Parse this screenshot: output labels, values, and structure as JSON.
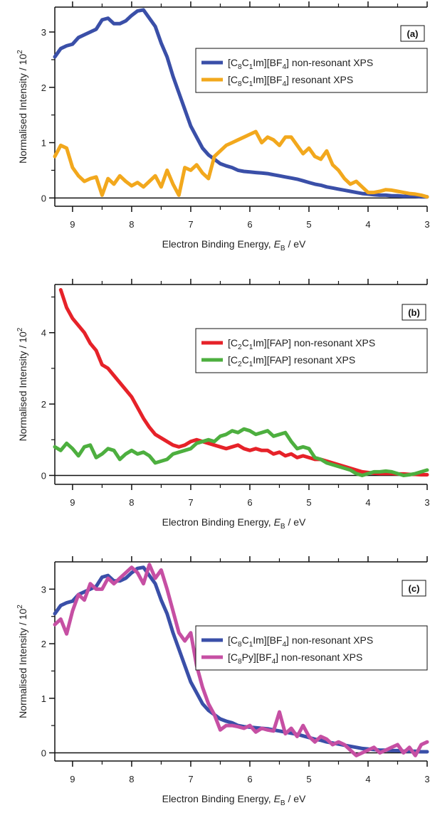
{
  "chart_data": [
    {
      "type": "line",
      "panel_label": "(a)",
      "xlabel": "Electron Binding Energy, E_B / eV",
      "xlabel_parts": {
        "pre": "Electron Binding Energy, ",
        "E": "E",
        "sub": "B",
        "post": " / eV"
      },
      "ylabel": "Normalised Intensity / 10^2",
      "ylabel_parts": {
        "main": "Normalised Intensity / 10",
        "sup": "2"
      },
      "xlim": [
        9.3,
        3.0
      ],
      "ylim": [
        -0.15,
        3.45
      ],
      "xticks": [
        "9",
        "8",
        "7",
        "6",
        "5",
        "4",
        "3"
      ],
      "yticks": [
        "0",
        "1",
        "2",
        "3"
      ],
      "legend_position": "top-right",
      "series": [
        {
          "name": "[C8C1Im][BF4] non-resonant XPS",
          "legend_parts": {
            "a": "[C",
            "s1": "8",
            "b": "C",
            "s2": "1",
            "c": "Im][BF",
            "s3": "4",
            "d": "] non-resonant XPS"
          },
          "color": "#3a4fa8",
          "x": [
            9.3,
            9.2,
            9.1,
            9.0,
            8.9,
            8.8,
            8.7,
            8.6,
            8.5,
            8.4,
            8.3,
            8.2,
            8.1,
            8.0,
            7.9,
            7.8,
            7.7,
            7.6,
            7.5,
            7.4,
            7.3,
            7.2,
            7.1,
            7.0,
            6.9,
            6.8,
            6.7,
            6.6,
            6.5,
            6.4,
            6.3,
            6.2,
            6.1,
            6.0,
            5.9,
            5.8,
            5.7,
            5.6,
            5.5,
            5.4,
            5.3,
            5.2,
            5.1,
            5.0,
            4.9,
            4.8,
            4.7,
            4.6,
            4.5,
            4.4,
            4.3,
            4.2,
            4.1,
            4.0,
            3.9,
            3.8,
            3.7,
            3.6,
            3.5,
            3.4,
            3.3,
            3.2,
            3.1,
            3.0
          ],
          "y": [
            2.55,
            2.7,
            2.75,
            2.78,
            2.9,
            2.95,
            3.0,
            3.05,
            3.22,
            3.25,
            3.15,
            3.15,
            3.2,
            3.3,
            3.38,
            3.4,
            3.25,
            3.1,
            2.8,
            2.55,
            2.2,
            1.9,
            1.6,
            1.3,
            1.1,
            0.9,
            0.78,
            0.7,
            0.62,
            0.58,
            0.55,
            0.5,
            0.48,
            0.47,
            0.46,
            0.45,
            0.44,
            0.42,
            0.4,
            0.38,
            0.36,
            0.34,
            0.31,
            0.28,
            0.25,
            0.23,
            0.2,
            0.18,
            0.16,
            0.14,
            0.12,
            0.1,
            0.08,
            0.07,
            0.06,
            0.05,
            0.05,
            0.04,
            0.04,
            0.03,
            0.03,
            0.03,
            0.02,
            0.02
          ]
        },
        {
          "name": "[C8C1Im][BF4] resonant XPS",
          "legend_parts": {
            "a": "[C",
            "s1": "8",
            "b": "C",
            "s2": "1",
            "c": "Im][BF",
            "s3": "4",
            "d": "] resonant XPS"
          },
          "color": "#f2a81d",
          "x": [
            9.3,
            9.2,
            9.1,
            9.0,
            8.9,
            8.8,
            8.7,
            8.6,
            8.5,
            8.4,
            8.3,
            8.2,
            8.1,
            8.0,
            7.9,
            7.8,
            7.7,
            7.6,
            7.5,
            7.4,
            7.3,
            7.2,
            7.1,
            7.0,
            6.9,
            6.8,
            6.7,
            6.6,
            6.5,
            6.4,
            6.3,
            6.2,
            6.1,
            6.0,
            5.9,
            5.8,
            5.7,
            5.6,
            5.5,
            5.4,
            5.3,
            5.2,
            5.1,
            5.0,
            4.9,
            4.8,
            4.7,
            4.6,
            4.5,
            4.4,
            4.3,
            4.2,
            4.1,
            4.0,
            3.9,
            3.8,
            3.7,
            3.6,
            3.5,
            3.4,
            3.3,
            3.2,
            3.1,
            3.0
          ],
          "y": [
            0.75,
            0.95,
            0.9,
            0.55,
            0.4,
            0.3,
            0.35,
            0.38,
            0.05,
            0.35,
            0.25,
            0.4,
            0.3,
            0.22,
            0.28,
            0.2,
            0.3,
            0.4,
            0.2,
            0.5,
            0.25,
            0.05,
            0.55,
            0.5,
            0.6,
            0.45,
            0.35,
            0.75,
            0.85,
            0.95,
            1.0,
            1.05,
            1.1,
            1.15,
            1.2,
            1.0,
            1.1,
            1.05,
            0.95,
            1.1,
            1.1,
            0.95,
            0.8,
            0.9,
            0.75,
            0.7,
            0.85,
            0.6,
            0.5,
            0.35,
            0.25,
            0.3,
            0.2,
            0.1,
            0.1,
            0.12,
            0.15,
            0.14,
            0.12,
            0.1,
            0.08,
            0.07,
            0.05,
            0.02
          ]
        }
      ]
    },
    {
      "type": "line",
      "panel_label": "(b)",
      "xlabel": "Electron Binding Energy, E_B / eV",
      "xlabel_parts": {
        "pre": "Electron Binding Energy, ",
        "E": "E",
        "sub": "B",
        "post": " / eV"
      },
      "ylabel": "Normalised Intensity / 10^2",
      "ylabel_parts": {
        "main": "Normalised Intensity / 10",
        "sup": "2"
      },
      "xlim": [
        9.3,
        3.0
      ],
      "ylim": [
        -0.25,
        5.35
      ],
      "xticks": [
        "9",
        "8",
        "7",
        "6",
        "5",
        "4",
        "3"
      ],
      "yticks": [
        "0",
        "2",
        "4"
      ],
      "legend_position": "top-right",
      "series": [
        {
          "name": "[C2C1Im][FAP] non-resonant XPS",
          "legend_parts": {
            "a": "[C",
            "s1": "2",
            "b": "C",
            "s2": "1",
            "c": "Im][FAP]",
            "s3": "",
            "d": " non-resonant XPS"
          },
          "color": "#e62229",
          "x": [
            9.2,
            9.1,
            9.0,
            8.9,
            8.8,
            8.7,
            8.6,
            8.5,
            8.4,
            8.3,
            8.2,
            8.1,
            8.0,
            7.9,
            7.8,
            7.7,
            7.6,
            7.5,
            7.4,
            7.3,
            7.2,
            7.1,
            7.0,
            6.9,
            6.8,
            6.7,
            6.6,
            6.5,
            6.4,
            6.3,
            6.2,
            6.1,
            6.0,
            5.9,
            5.8,
            5.7,
            5.6,
            5.5,
            5.4,
            5.3,
            5.2,
            5.1,
            5.0,
            4.9,
            4.8,
            4.7,
            4.6,
            4.5,
            4.4,
            4.3,
            4.2,
            4.1,
            4.0,
            3.9,
            3.8,
            3.7,
            3.6,
            3.5,
            3.4,
            3.3,
            3.2,
            3.1,
            3.0
          ],
          "y": [
            5.2,
            4.7,
            4.4,
            4.2,
            4.0,
            3.7,
            3.5,
            3.1,
            3.0,
            2.8,
            2.6,
            2.4,
            2.2,
            1.9,
            1.6,
            1.35,
            1.15,
            1.05,
            0.95,
            0.85,
            0.8,
            0.85,
            0.95,
            1.0,
            0.95,
            0.9,
            0.85,
            0.8,
            0.75,
            0.8,
            0.85,
            0.75,
            0.7,
            0.75,
            0.7,
            0.7,
            0.6,
            0.65,
            0.55,
            0.6,
            0.5,
            0.55,
            0.5,
            0.45,
            0.45,
            0.4,
            0.35,
            0.3,
            0.25,
            0.2,
            0.15,
            0.1,
            0.08,
            0.06,
            0.05,
            0.05,
            0.05,
            0.04,
            0.04,
            0.03,
            0.03,
            0.02,
            0.02
          ]
        },
        {
          "name": "[C2C1Im][FAP] resonant XPS",
          "legend_parts": {
            "a": "[C",
            "s1": "2",
            "b": "C",
            "s2": "1",
            "c": "Im][FAP]",
            "s3": "",
            "d": " resonant XPS"
          },
          "color": "#4daf3f",
          "x": [
            9.3,
            9.2,
            9.1,
            9.0,
            8.9,
            8.8,
            8.7,
            8.6,
            8.5,
            8.4,
            8.3,
            8.2,
            8.1,
            8.0,
            7.9,
            7.8,
            7.7,
            7.6,
            7.5,
            7.4,
            7.3,
            7.2,
            7.1,
            7.0,
            6.9,
            6.8,
            6.7,
            6.6,
            6.5,
            6.4,
            6.3,
            6.2,
            6.1,
            6.0,
            5.9,
            5.8,
            5.7,
            5.6,
            5.5,
            5.4,
            5.3,
            5.2,
            5.1,
            5.0,
            4.9,
            4.8,
            4.7,
            4.6,
            4.5,
            4.4,
            4.3,
            4.2,
            4.1,
            4.0,
            3.9,
            3.8,
            3.7,
            3.6,
            3.5,
            3.4,
            3.3,
            3.2,
            3.1,
            3.0
          ],
          "y": [
            0.8,
            0.7,
            0.9,
            0.75,
            0.55,
            0.8,
            0.85,
            0.5,
            0.6,
            0.75,
            0.7,
            0.45,
            0.6,
            0.7,
            0.6,
            0.65,
            0.55,
            0.35,
            0.4,
            0.45,
            0.6,
            0.65,
            0.7,
            0.75,
            0.9,
            0.95,
            1.0,
            0.95,
            1.1,
            1.15,
            1.25,
            1.2,
            1.3,
            1.25,
            1.15,
            1.2,
            1.25,
            1.1,
            1.15,
            1.2,
            0.95,
            0.75,
            0.8,
            0.75,
            0.5,
            0.45,
            0.35,
            0.3,
            0.25,
            0.2,
            0.15,
            0.05,
            0.0,
            0.05,
            0.1,
            0.1,
            0.12,
            0.1,
            0.05,
            0.0,
            0.02,
            0.05,
            0.1,
            0.15
          ]
        }
      ]
    },
    {
      "type": "line",
      "panel_label": "(c)",
      "xlabel": "Electron Binding Energy, E_B / eV",
      "xlabel_parts": {
        "pre": "Electron Binding Energy, ",
        "E": "E",
        "sub": "B",
        "post": " / eV"
      },
      "ylabel": "Normalised Intensity / 10^2",
      "ylabel_parts": {
        "main": "Normalised Intensity / 10",
        "sup": "2"
      },
      "xlim": [
        9.3,
        3.0
      ],
      "ylim": [
        -0.15,
        3.5
      ],
      "xticks": [
        "9",
        "8",
        "7",
        "6",
        "5",
        "4",
        "3"
      ],
      "yticks": [
        "0",
        "1",
        "2",
        "3"
      ],
      "legend_position": "right",
      "series": [
        {
          "name": "[C8C1Im][BF4] non-resonant XPS",
          "legend_parts": {
            "a": "[C",
            "s1": "8",
            "b": "C",
            "s2": "1",
            "c": "Im][BF",
            "s3": "4",
            "d": "] non-resonant XPS"
          },
          "color": "#3a4fa8",
          "x": [
            9.3,
            9.2,
            9.1,
            9.0,
            8.9,
            8.8,
            8.7,
            8.6,
            8.5,
            8.4,
            8.3,
            8.2,
            8.1,
            8.0,
            7.9,
            7.8,
            7.7,
            7.6,
            7.5,
            7.4,
            7.3,
            7.2,
            7.1,
            7.0,
            6.9,
            6.8,
            6.7,
            6.6,
            6.5,
            6.4,
            6.3,
            6.2,
            6.1,
            6.0,
            5.9,
            5.8,
            5.7,
            5.6,
            5.5,
            5.4,
            5.3,
            5.2,
            5.1,
            5.0,
            4.9,
            4.8,
            4.7,
            4.6,
            4.5,
            4.4,
            4.3,
            4.2,
            4.1,
            4.0,
            3.9,
            3.8,
            3.7,
            3.6,
            3.5,
            3.4,
            3.3,
            3.2,
            3.1,
            3.0
          ],
          "y": [
            2.55,
            2.7,
            2.75,
            2.78,
            2.9,
            2.95,
            3.0,
            3.05,
            3.22,
            3.25,
            3.15,
            3.15,
            3.2,
            3.3,
            3.38,
            3.4,
            3.25,
            3.1,
            2.8,
            2.55,
            2.2,
            1.9,
            1.6,
            1.3,
            1.1,
            0.9,
            0.78,
            0.7,
            0.62,
            0.58,
            0.55,
            0.5,
            0.48,
            0.47,
            0.46,
            0.45,
            0.44,
            0.42,
            0.4,
            0.38,
            0.36,
            0.34,
            0.31,
            0.28,
            0.25,
            0.23,
            0.2,
            0.18,
            0.16,
            0.14,
            0.12,
            0.1,
            0.08,
            0.07,
            0.06,
            0.05,
            0.05,
            0.04,
            0.04,
            0.03,
            0.03,
            0.03,
            0.02,
            0.02
          ]
        },
        {
          "name": "[C8Py][BF4] non-resonant XPS",
          "legend_parts": {
            "a": "[C",
            "s1": "8",
            "b": "Py][BF",
            "s2": "4",
            "c": "] non-resonant XPS",
            "s3": "",
            "d": ""
          },
          "color": "#c64fa3",
          "x": [
            9.3,
            9.2,
            9.1,
            9.0,
            8.9,
            8.8,
            8.7,
            8.6,
            8.5,
            8.4,
            8.3,
            8.2,
            8.1,
            8.0,
            7.9,
            7.8,
            7.7,
            7.6,
            7.5,
            7.4,
            7.3,
            7.2,
            7.1,
            7.0,
            6.9,
            6.8,
            6.7,
            6.6,
            6.5,
            6.4,
            6.3,
            6.2,
            6.1,
            6.0,
            5.9,
            5.8,
            5.7,
            5.6,
            5.5,
            5.4,
            5.3,
            5.2,
            5.1,
            5.0,
            4.9,
            4.8,
            4.7,
            4.6,
            4.5,
            4.4,
            4.3,
            4.2,
            4.1,
            4.0,
            3.9,
            3.8,
            3.7,
            3.6,
            3.5,
            3.4,
            3.3,
            3.2,
            3.1,
            3.0
          ],
          "y": [
            2.35,
            2.45,
            2.18,
            2.6,
            2.9,
            2.8,
            3.1,
            3.0,
            3.0,
            3.2,
            3.1,
            3.2,
            3.3,
            3.4,
            3.3,
            3.1,
            3.45,
            3.2,
            3.35,
            3.0,
            2.6,
            2.2,
            2.05,
            2.2,
            1.6,
            1.2,
            0.9,
            0.7,
            0.42,
            0.5,
            0.5,
            0.48,
            0.45,
            0.5,
            0.38,
            0.45,
            0.42,
            0.4,
            0.75,
            0.35,
            0.45,
            0.3,
            0.5,
            0.3,
            0.2,
            0.3,
            0.25,
            0.15,
            0.2,
            0.15,
            0.05,
            -0.05,
            0.0,
            0.05,
            0.1,
            0.0,
            0.05,
            0.1,
            0.15,
            0.0,
            0.1,
            -0.05,
            0.15,
            0.2
          ]
        }
      ]
    }
  ]
}
